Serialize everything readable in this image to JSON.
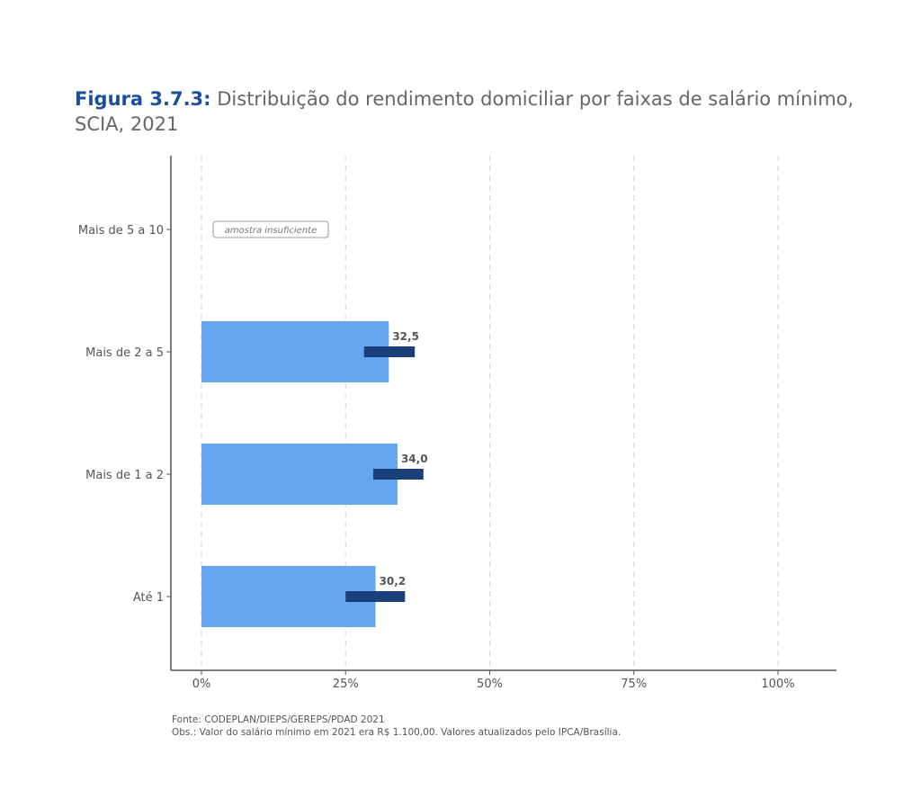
{
  "title_prefix": "Figura 3.7.3:",
  "title_text": "Distribuição do rendimento domiciliar por faixas de salário mínimo, SCIA, 2021",
  "source": "Fonte: CODEPLAN/DIEPS/GEREPS/PDAD 2021",
  "note": "Obs.: Valor do salário mínimo em 2021 era R$ 1.100,00. Valores atualizados pelo IPCA/Brasília.",
  "colors": {
    "bar": "#64a5ef",
    "interval": "#1a3f7a",
    "title_accent": "#1b4f9c"
  },
  "chart_data": {
    "type": "bar",
    "orientation": "horizontal",
    "categories": [
      "Até 1",
      "Mais de 1 a 2",
      "Mais de 2 a 5",
      "Mais de 5 a 10"
    ],
    "values": [
      30.2,
      34.0,
      32.5,
      null
    ],
    "data_labels": [
      "30,2",
      "34,0",
      "32,5",
      ""
    ],
    "intervals": [
      [
        25.0,
        35.3
      ],
      [
        29.8,
        38.5
      ],
      [
        28.2,
        37.0
      ],
      null
    ],
    "annotation": {
      "category": "Mais de 5 a 10",
      "text": "amostra insuficiente"
    },
    "xlim": [
      0,
      100
    ],
    "x_ticks": [
      0,
      25,
      50,
      75,
      100
    ],
    "x_tick_labels": [
      "0%",
      "25%",
      "50%",
      "75%",
      "100%"
    ],
    "grid": "vertical dashed",
    "legend": "none"
  }
}
